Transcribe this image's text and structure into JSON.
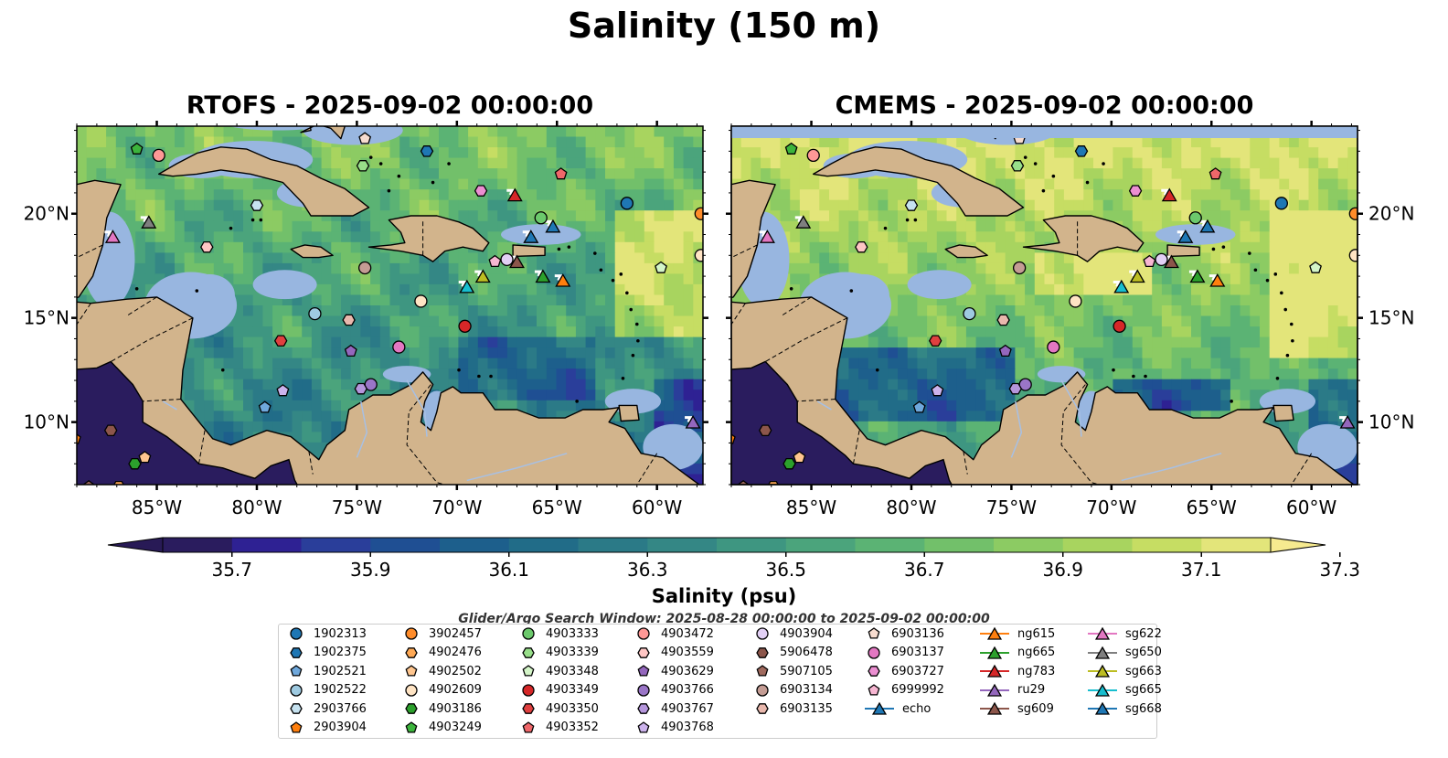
{
  "title": "Salinity (150 m)",
  "panels": [
    {
      "title": "RTOFS - 2025-09-02 00:00:00"
    },
    {
      "title": "CMEMS - 2025-09-02 00:00:00"
    }
  ],
  "colorbar": {
    "label": "Salinity (psu)",
    "ticks": [
      "35.7",
      "35.9",
      "36.1",
      "36.3",
      "36.5",
      "36.7",
      "36.9",
      "37.1",
      "37.3"
    ],
    "colors": [
      "#2a1c5e",
      "#2e2193",
      "#2a3e9a",
      "#1f4f93",
      "#1d5f8c",
      "#216c88",
      "#2b7a87",
      "#348785",
      "#3e9681",
      "#4ba47c",
      "#5bb374",
      "#72c06a",
      "#8ccb63",
      "#a8d45f",
      "#c6dd63",
      "#e3e57a"
    ],
    "extend_min_color": "#281a56",
    "extend_max_color": "#f6ea8f"
  },
  "search_window": "Glider/Argo Search Window: 2025-08-28 00:00:00 to 2025-09-02 00:00:00",
  "legend": {
    "columns": [
      [
        {
          "label": "1902313",
          "marker": "circle",
          "color": "#1f77b4"
        },
        {
          "label": "1902375",
          "marker": "hexagon",
          "color": "#1f77b4"
        },
        {
          "label": "1902521",
          "marker": "pentagon",
          "color": "#6fa8dc"
        },
        {
          "label": "1902522",
          "marker": "circle",
          "color": "#9ecae1"
        },
        {
          "label": "2903766",
          "marker": "hexagon",
          "color": "#c6e2f0"
        },
        {
          "label": "2903904",
          "marker": "pentagon",
          "color": "#ff7f0e"
        }
      ],
      [
        {
          "label": "3902457",
          "marker": "circle",
          "color": "#ff8c2a"
        },
        {
          "label": "4902476",
          "marker": "hexagon",
          "color": "#ffa955"
        },
        {
          "label": "4902502",
          "marker": "pentagon",
          "color": "#ffc68f"
        },
        {
          "label": "4902609",
          "marker": "circle",
          "color": "#ffe4c4"
        },
        {
          "label": "4903186",
          "marker": "hexagon",
          "color": "#2ca02c"
        },
        {
          "label": "4903249",
          "marker": "pentagon",
          "color": "#3cb43c"
        }
      ],
      [
        {
          "label": "4903333",
          "marker": "circle",
          "color": "#6cc96c"
        },
        {
          "label": "4903339",
          "marker": "hexagon",
          "color": "#98df8a"
        },
        {
          "label": "4903348",
          "marker": "pentagon",
          "color": "#d4f5c8"
        },
        {
          "label": "4903349",
          "marker": "circle",
          "color": "#d62728"
        },
        {
          "label": "4903350",
          "marker": "hexagon",
          "color": "#e0403f"
        },
        {
          "label": "4903352",
          "marker": "pentagon",
          "color": "#f0676a"
        }
      ],
      [
        {
          "label": "4903472",
          "marker": "circle",
          "color": "#ff9896"
        },
        {
          "label": "4903559",
          "marker": "hexagon",
          "color": "#ffc6c4"
        },
        {
          "label": "4903629",
          "marker": "pentagon",
          "color": "#9467bd"
        },
        {
          "label": "4903766",
          "marker": "circle",
          "color": "#9a75c7"
        },
        {
          "label": "4903767",
          "marker": "hexagon",
          "color": "#b596dc"
        },
        {
          "label": "4903768",
          "marker": "pentagon",
          "color": "#ccb3ec"
        }
      ],
      [
        {
          "label": "4903904",
          "marker": "circle",
          "color": "#e2d0f5"
        },
        {
          "label": "5906478",
          "marker": "hexagon",
          "color": "#8c564b"
        },
        {
          "label": "5907105",
          "marker": "pentagon",
          "color": "#a06a5e"
        },
        {
          "label": "6903134",
          "marker": "circle",
          "color": "#c49c94"
        },
        {
          "label": "6903135",
          "marker": "hexagon",
          "color": "#e9b8ad"
        }
      ],
      [
        {
          "label": "6903136",
          "marker": "pentagon",
          "color": "#f7dccf"
        },
        {
          "label": "6903137",
          "marker": "circle",
          "color": "#e377c2"
        },
        {
          "label": "6903727",
          "marker": "hexagon",
          "color": "#ec8fd2"
        },
        {
          "label": "6999992",
          "marker": "pentagon",
          "color": "#f7b6d2"
        },
        {
          "label": "echo",
          "marker": "triangle-line",
          "color": "#1f77b4"
        }
      ],
      [
        {
          "label": "ng615",
          "marker": "triangle-line",
          "color": "#ff7f0e"
        },
        {
          "label": "ng665",
          "marker": "triangle-line",
          "color": "#2ca02c"
        },
        {
          "label": "ng783",
          "marker": "triangle-line",
          "color": "#d62728"
        },
        {
          "label": "ru29",
          "marker": "triangle-line",
          "color": "#9467bd"
        },
        {
          "label": "sg609",
          "marker": "triangle-line",
          "color": "#8c564b"
        }
      ],
      [
        {
          "label": "sg622",
          "marker": "triangle-line",
          "color": "#e377c2"
        },
        {
          "label": "sg650",
          "marker": "triangle-line",
          "color": "#7f7f7f"
        },
        {
          "label": "sg663",
          "marker": "triangle-line",
          "color": "#bcbd22"
        },
        {
          "label": "sg665",
          "marker": "triangle-line",
          "color": "#17becf"
        },
        {
          "label": "sg668",
          "marker": "triangle-line",
          "color": "#1f77b4"
        }
      ]
    ]
  },
  "chart_data": {
    "type": "map-contourf",
    "variable": "Salinity",
    "depth": "150 m",
    "units": "psu",
    "lon_range": [
      -89,
      -57.7
    ],
    "lat_range": [
      7,
      24.2
    ],
    "xticks": [
      -85,
      -80,
      -75,
      -70,
      -65,
      -60
    ],
    "xtick_labels": [
      "85°W",
      "80°W",
      "75°W",
      "70°W",
      "65°W",
      "60°W"
    ],
    "yticks": [
      10,
      15,
      20
    ],
    "ytick_labels": [
      "10°N",
      "15°N",
      "20°N"
    ],
    "colors": {
      "land": "#d2b48c",
      "shallow": "#98b6e0"
    },
    "vmin": 35.7,
    "vmax": 37.3,
    "profiles": [
      {
        "id": "1902313",
        "lon": -61.5,
        "lat": 20.5
      },
      {
        "id": "1902375",
        "lon": -71.5,
        "lat": 23.0
      },
      {
        "id": "1902521",
        "lon": -79.6,
        "lat": 10.7
      },
      {
        "id": "1902522",
        "lon": -77.1,
        "lat": 15.2
      },
      {
        "id": "2903766",
        "lon": -80.0,
        "lat": 20.4
      },
      {
        "id": "2903904",
        "lon": -89.1,
        "lat": 9.2
      },
      {
        "id": "3902457",
        "lon": -57.8,
        "lat": 20.0
      },
      {
        "id": "4902476",
        "lon": -86.9,
        "lat": 6.9
      },
      {
        "id": "4902502",
        "lon": -85.6,
        "lat": 8.3
      },
      {
        "id": "4902609",
        "lon": -57.8,
        "lat": 18.0
      },
      {
        "id": "4903186",
        "lon": -86.1,
        "lat": 8.0
      },
      {
        "id": "4903249",
        "lon": -86.0,
        "lat": 23.1
      },
      {
        "id": "4903333",
        "lon": -65.8,
        "lat": 19.8
      },
      {
        "id": "4903339",
        "lon": -74.7,
        "lat": 22.3
      },
      {
        "id": "4903348",
        "lon": -59.8,
        "lat": 17.4
      },
      {
        "id": "4903349",
        "lon": -69.6,
        "lat": 14.6
      },
      {
        "id": "4903350",
        "lon": -78.8,
        "lat": 13.9
      },
      {
        "id": "4903352",
        "lon": -64.8,
        "lat": 21.9
      },
      {
        "id": "4903472",
        "lon": -84.9,
        "lat": 22.8
      },
      {
        "id": "4903559",
        "lon": -82.5,
        "lat": 18.4
      },
      {
        "id": "4903629",
        "lon": -75.3,
        "lat": 13.4
      },
      {
        "id": "4903766",
        "lon": -74.3,
        "lat": 11.8
      },
      {
        "id": "4903767",
        "lon": -74.8,
        "lat": 11.6
      },
      {
        "id": "4903768",
        "lon": -78.7,
        "lat": 11.5
      },
      {
        "id": "4903904",
        "lon": -67.5,
        "lat": 17.8
      },
      {
        "id": "5906478",
        "lon": -87.3,
        "lat": 9.6
      },
      {
        "id": "5907105",
        "lon": -88.4,
        "lat": 6.9
      },
      {
        "id": "6903134",
        "lon": -74.6,
        "lat": 17.4
      },
      {
        "id": "6903135",
        "lon": -75.4,
        "lat": 14.9
      },
      {
        "id": "6903136",
        "lon": -74.6,
        "lat": 23.6
      },
      {
        "id": "6903137",
        "lon": -72.9,
        "lat": 13.6
      },
      {
        "id": "6903727",
        "lon": -68.8,
        "lat": 21.1
      },
      {
        "id": "6999992",
        "lon": -68.1,
        "lat": 17.7
      },
      {
        "id": "4902609b",
        "lon": -71.8,
        "lat": 15.8
      }
    ],
    "gliders": [
      {
        "id": "echo",
        "lon": -66.3,
        "lat": 18.9
      },
      {
        "id": "ng615",
        "lon": -64.7,
        "lat": 16.8
      },
      {
        "id": "ng665",
        "lon": -65.7,
        "lat": 17.0
      },
      {
        "id": "ng783",
        "lon": -67.1,
        "lat": 20.9
      },
      {
        "id": "ru29",
        "lon": -58.2,
        "lat": 10.0
      },
      {
        "id": "sg609",
        "lon": -67.0,
        "lat": 17.7
      },
      {
        "id": "sg622",
        "lon": -87.2,
        "lat": 18.9
      },
      {
        "id": "sg650",
        "lon": -85.4,
        "lat": 19.6
      },
      {
        "id": "sg663",
        "lon": -68.7,
        "lat": 17.0
      },
      {
        "id": "sg665",
        "lon": -69.5,
        "lat": 16.5
      },
      {
        "id": "sg668",
        "lon": -65.2,
        "lat": 19.4
      }
    ]
  }
}
